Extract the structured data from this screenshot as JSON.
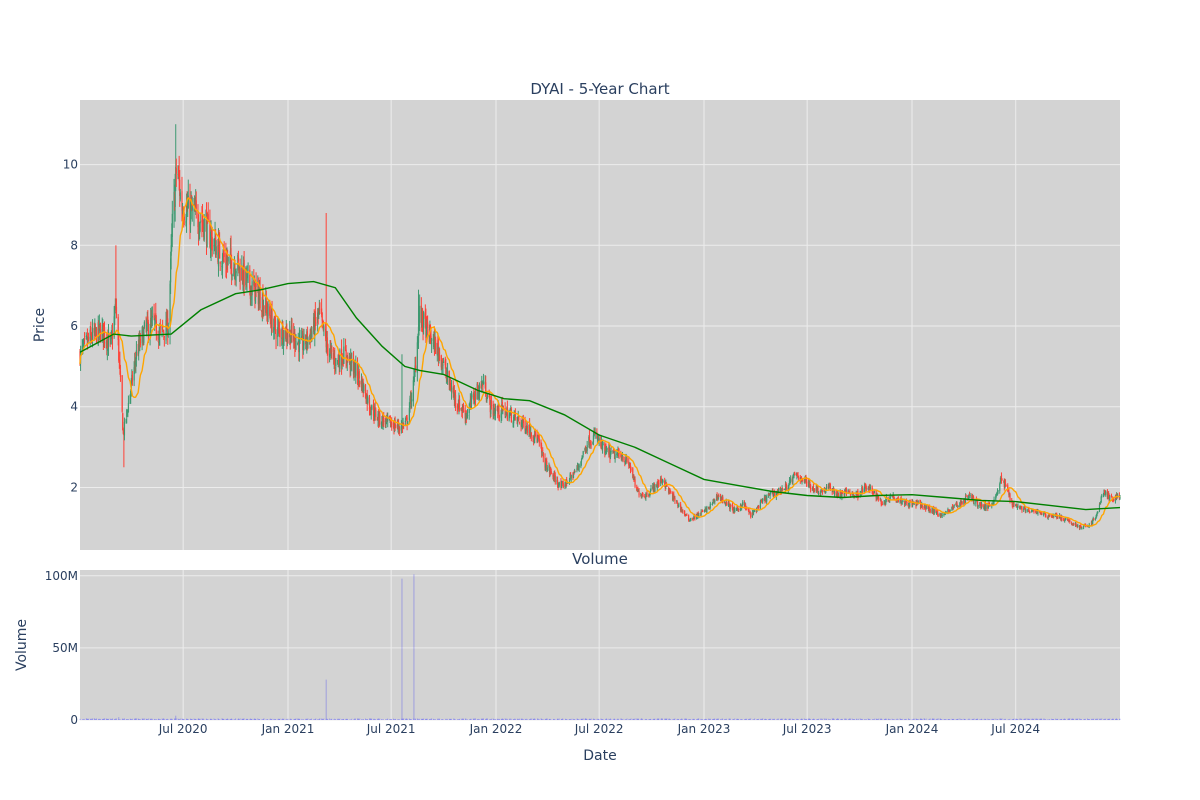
{
  "chart_data": [
    {
      "type": "candlestick",
      "title": "DYAI - 5-Year Chart",
      "xlabel": "",
      "ylabel": "Price",
      "xlim": [
        "2020-01-02",
        "2024-12-31"
      ],
      "ylim": [
        0.45,
        11.6
      ],
      "yticks": [
        2,
        4,
        6,
        8,
        10
      ],
      "grid": true,
      "legend": "none",
      "colors": {
        "up": "#3d9970",
        "down": "#ff4136",
        "ma_short": "#ffa500",
        "ma_long": "#008000",
        "background": "#d3d3d3"
      },
      "price_path": [
        [
          "2020-01-02",
          5.3
        ],
        [
          "2020-01-20",
          5.7
        ],
        [
          "2020-02-10",
          5.9
        ],
        [
          "2020-02-25",
          5.5
        ],
        [
          "2020-03-05",
          6.5
        ],
        [
          "2020-03-12",
          4.8
        ],
        [
          "2020-03-18",
          3.3
        ],
        [
          "2020-03-25",
          3.9
        ],
        [
          "2020-04-10",
          5.3
        ],
        [
          "2020-04-25",
          5.9
        ],
        [
          "2020-05-10",
          6.1
        ],
        [
          "2020-05-20",
          5.8
        ],
        [
          "2020-06-05",
          6.0
        ],
        [
          "2020-06-12",
          8.5
        ],
        [
          "2020-06-20",
          10.0
        ],
        [
          "2020-06-28",
          9.0
        ],
        [
          "2020-07-15",
          8.8
        ],
        [
          "2020-08-05",
          8.6
        ],
        [
          "2020-08-25",
          8.0
        ],
        [
          "2020-09-15",
          7.6
        ],
        [
          "2020-10-05",
          7.5
        ],
        [
          "2020-10-25",
          7.0
        ],
        [
          "2020-11-10",
          6.8
        ],
        [
          "2020-11-25",
          6.4
        ],
        [
          "2020-12-10",
          5.9
        ],
        [
          "2021-01-05",
          5.8
        ],
        [
          "2021-01-25",
          5.5
        ],
        [
          "2021-02-10",
          5.8
        ],
        [
          "2021-02-25",
          6.3
        ],
        [
          "2021-03-10",
          5.5
        ],
        [
          "2021-03-25",
          5.1
        ],
        [
          "2021-04-10",
          5.3
        ],
        [
          "2021-04-25",
          5.0
        ],
        [
          "2021-05-10",
          4.6
        ],
        [
          "2021-05-25",
          4.0
        ],
        [
          "2021-06-10",
          3.7
        ],
        [
          "2021-06-25",
          3.6
        ],
        [
          "2021-07-15",
          3.5
        ],
        [
          "2021-07-28",
          3.6
        ],
        [
          "2021-08-10",
          4.6
        ],
        [
          "2021-08-20",
          6.3
        ],
        [
          "2021-09-05",
          5.8
        ],
        [
          "2021-09-25",
          5.3
        ],
        [
          "2021-10-10",
          4.6
        ],
        [
          "2021-10-25",
          4.1
        ],
        [
          "2021-11-10",
          3.8
        ],
        [
          "2021-11-25",
          4.3
        ],
        [
          "2021-12-10",
          4.6
        ],
        [
          "2021-12-25",
          3.9
        ],
        [
          "2022-01-15",
          3.9
        ],
        [
          "2022-02-05",
          3.7
        ],
        [
          "2022-02-25",
          3.5
        ],
        [
          "2022-03-15",
          3.2
        ],
        [
          "2022-03-28",
          2.6
        ],
        [
          "2022-04-10",
          2.3
        ],
        [
          "2022-04-25",
          2.0
        ],
        [
          "2022-05-10",
          2.2
        ],
        [
          "2022-05-25",
          2.5
        ],
        [
          "2022-06-10",
          3.1
        ],
        [
          "2022-06-25",
          3.3
        ],
        [
          "2022-07-10",
          2.9
        ],
        [
          "2022-07-25",
          2.8
        ],
        [
          "2022-08-10",
          2.8
        ],
        [
          "2022-08-25",
          2.5
        ],
        [
          "2022-09-05",
          1.9
        ],
        [
          "2022-09-20",
          1.8
        ],
        [
          "2022-10-05",
          2.0
        ],
        [
          "2022-10-20",
          2.2
        ],
        [
          "2022-11-05",
          1.8
        ],
        [
          "2022-11-20",
          1.5
        ],
        [
          "2022-12-05",
          1.2
        ],
        [
          "2022-12-20",
          1.3
        ],
        [
          "2023-01-10",
          1.5
        ],
        [
          "2023-01-25",
          1.8
        ],
        [
          "2023-02-10",
          1.6
        ],
        [
          "2023-02-25",
          1.4
        ],
        [
          "2023-03-10",
          1.6
        ],
        [
          "2023-03-25",
          1.3
        ],
        [
          "2023-04-10",
          1.6
        ],
        [
          "2023-04-25",
          1.8
        ],
        [
          "2023-05-10",
          1.9
        ],
        [
          "2023-05-25",
          2.0
        ],
        [
          "2023-06-10",
          2.3
        ],
        [
          "2023-06-25",
          2.2
        ],
        [
          "2023-07-10",
          2.0
        ],
        [
          "2023-07-25",
          1.9
        ],
        [
          "2023-08-10",
          2.0
        ],
        [
          "2023-08-25",
          1.8
        ],
        [
          "2023-09-10",
          1.9
        ],
        [
          "2023-09-25",
          1.8
        ],
        [
          "2023-10-10",
          2.0
        ],
        [
          "2023-10-25",
          1.9
        ],
        [
          "2023-11-10",
          1.6
        ],
        [
          "2023-11-25",
          1.8
        ],
        [
          "2023-12-10",
          1.7
        ],
        [
          "2023-12-25",
          1.6
        ],
        [
          "2024-01-10",
          1.6
        ],
        [
          "2024-01-25",
          1.5
        ],
        [
          "2024-02-10",
          1.4
        ],
        [
          "2024-02-25",
          1.3
        ],
        [
          "2024-03-10",
          1.5
        ],
        [
          "2024-03-25",
          1.6
        ],
        [
          "2024-04-10",
          1.8
        ],
        [
          "2024-04-25",
          1.6
        ],
        [
          "2024-05-10",
          1.5
        ],
        [
          "2024-05-25",
          1.7
        ],
        [
          "2024-06-05",
          2.2
        ],
        [
          "2024-06-15",
          2.0
        ],
        [
          "2024-06-25",
          1.6
        ],
        [
          "2024-07-10",
          1.5
        ],
        [
          "2024-07-25",
          1.4
        ],
        [
          "2024-08-10",
          1.4
        ],
        [
          "2024-08-25",
          1.3
        ],
        [
          "2024-09-10",
          1.3
        ],
        [
          "2024-09-25",
          1.2
        ],
        [
          "2024-10-10",
          1.1
        ],
        [
          "2024-10-25",
          1.0
        ],
        [
          "2024-11-10",
          1.1
        ],
        [
          "2024-11-20",
          1.3
        ],
        [
          "2024-12-01",
          1.9
        ],
        [
          "2024-12-15",
          1.7
        ],
        [
          "2024-12-31",
          1.8
        ]
      ],
      "spikes": [
        [
          "2020-03-05",
          8.0
        ],
        [
          "2020-03-19",
          2.5
        ],
        [
          "2020-06-18",
          11.0
        ],
        [
          "2020-11-28",
          8.5
        ],
        [
          "2021-03-09",
          8.8
        ],
        [
          "2021-07-20",
          5.3
        ],
        [
          "2021-08-18",
          6.9
        ]
      ],
      "ma_long_path": [
        [
          "2020-01-02",
          5.35
        ],
        [
          "2020-03-01",
          5.8
        ],
        [
          "2020-04-01",
          5.75
        ],
        [
          "2020-06-10",
          5.8
        ],
        [
          "2020-08-01",
          6.4
        ],
        [
          "2020-10-01",
          6.8
        ],
        [
          "2020-11-15",
          6.9
        ],
        [
          "2021-01-01",
          7.05
        ],
        [
          "2021-02-15",
          7.1
        ],
        [
          "2021-03-25",
          6.95
        ],
        [
          "2021-05-01",
          6.2
        ],
        [
          "2021-06-15",
          5.5
        ],
        [
          "2021-07-25",
          5.0
        ],
        [
          "2021-08-20",
          4.9
        ],
        [
          "2021-10-01",
          4.8
        ],
        [
          "2021-12-01",
          4.4
        ],
        [
          "2022-01-15",
          4.2
        ],
        [
          "2022-03-01",
          4.15
        ],
        [
          "2022-05-01",
          3.8
        ],
        [
          "2022-07-01",
          3.3
        ],
        [
          "2022-09-01",
          3.0
        ],
        [
          "2022-11-01",
          2.6
        ],
        [
          "2023-01-01",
          2.2
        ],
        [
          "2023-03-01",
          2.05
        ],
        [
          "2023-05-01",
          1.9
        ],
        [
          "2023-07-01",
          1.8
        ],
        [
          "2023-09-01",
          1.75
        ],
        [
          "2023-11-01",
          1.8
        ],
        [
          "2024-01-01",
          1.82
        ],
        [
          "2024-03-01",
          1.75
        ],
        [
          "2024-05-01",
          1.68
        ],
        [
          "2024-07-01",
          1.65
        ],
        [
          "2024-09-01",
          1.55
        ],
        [
          "2024-11-01",
          1.45
        ],
        [
          "2024-12-31",
          1.5
        ]
      ]
    },
    {
      "type": "bar",
      "title": "Volume",
      "xlabel": "Date",
      "ylabel": "Volume",
      "xlim": [
        "2020-01-02",
        "2024-12-31"
      ],
      "ylim": [
        0,
        104000000
      ],
      "yticks": [
        0,
        50000000,
        100000000
      ],
      "ytick_labels": [
        "0",
        "50M",
        "100M"
      ],
      "xticks": [
        "2020-07-01",
        "2021-01-01",
        "2021-07-01",
        "2022-01-01",
        "2022-07-01",
        "2023-01-01",
        "2023-07-01",
        "2024-01-01",
        "2024-07-01"
      ],
      "xtick_labels": [
        "Jul 2020",
        "Jan 2021",
        "Jul 2021",
        "Jan 2022",
        "Jul 2022",
        "Jan 2023",
        "Jul 2023",
        "Jan 2024",
        "Jul 2024"
      ],
      "color": "#0000ff",
      "volume_spikes": [
        [
          "2020-03-10",
          2000000
        ],
        [
          "2020-06-18",
          3000000
        ],
        [
          "2021-03-09",
          28000000
        ],
        [
          "2021-07-20",
          98000000
        ],
        [
          "2021-08-10",
          101000000
        ]
      ],
      "baseline_volume": 600000
    }
  ]
}
